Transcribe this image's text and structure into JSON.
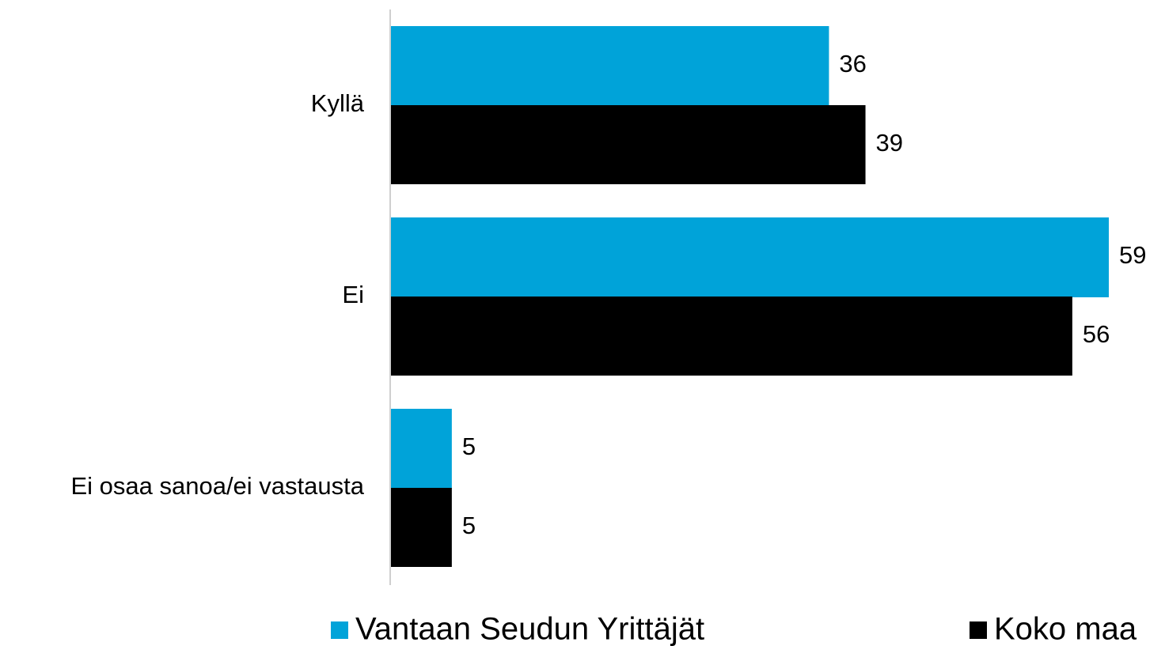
{
  "chart_data": {
    "type": "bar",
    "orientation": "horizontal",
    "categories": [
      "Kyllä",
      "Ei",
      "Ei osaa sanoa/ei vastausta"
    ],
    "series": [
      {
        "name": "Vantaan Seudun Yrittäjät",
        "color": "#00a3d9",
        "values": [
          36,
          59,
          5
        ]
      },
      {
        "name": "Koko maa",
        "color": "#000000",
        "values": [
          39,
          56,
          5
        ]
      }
    ],
    "legend": "bottom"
  }
}
